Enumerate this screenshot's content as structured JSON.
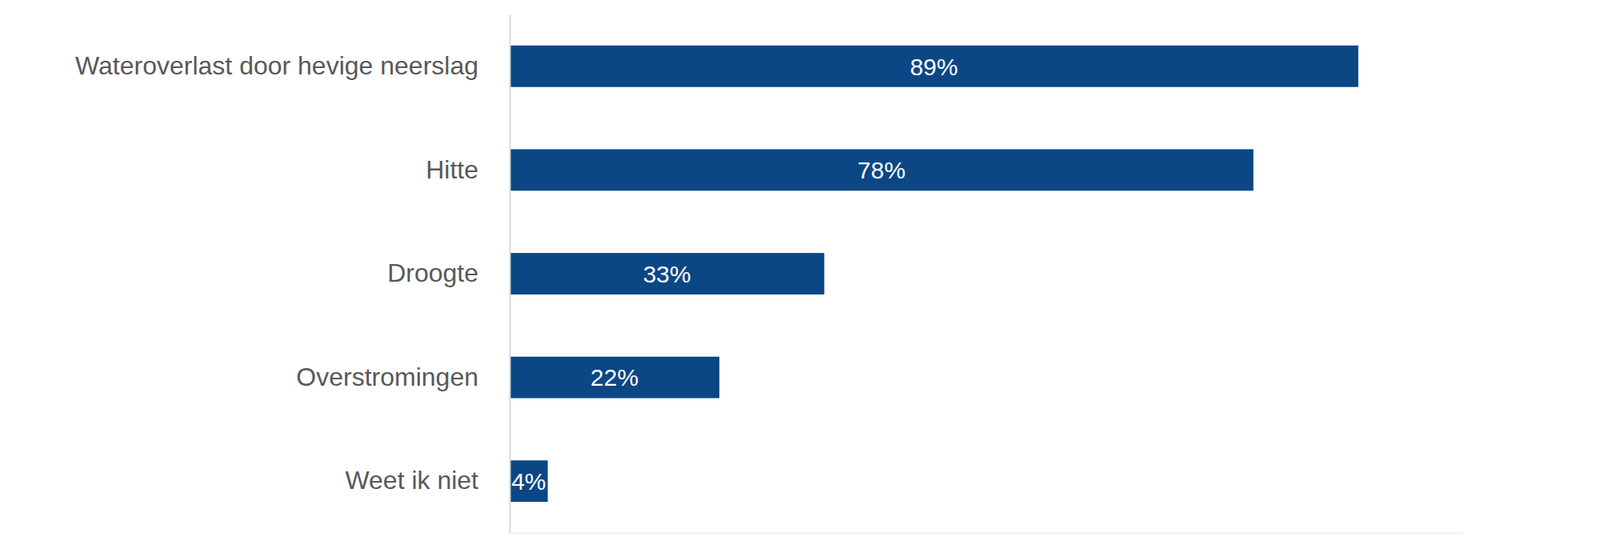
{
  "chart_data": {
    "type": "bar",
    "orientation": "horizontal",
    "categories": [
      "Wateroverlast door hevige neerslag",
      "Hitte",
      "Droogte",
      "Overstromingen",
      "Weet ik niet"
    ],
    "values": [
      89,
      78,
      33,
      22,
      4
    ],
    "value_labels": [
      "89%",
      "78%",
      "33%",
      "22%",
      "4%"
    ],
    "color": "#0b4785",
    "xlim": [
      0,
      100
    ],
    "data_labels": true,
    "tick_labels": "y",
    "grid": false
  }
}
